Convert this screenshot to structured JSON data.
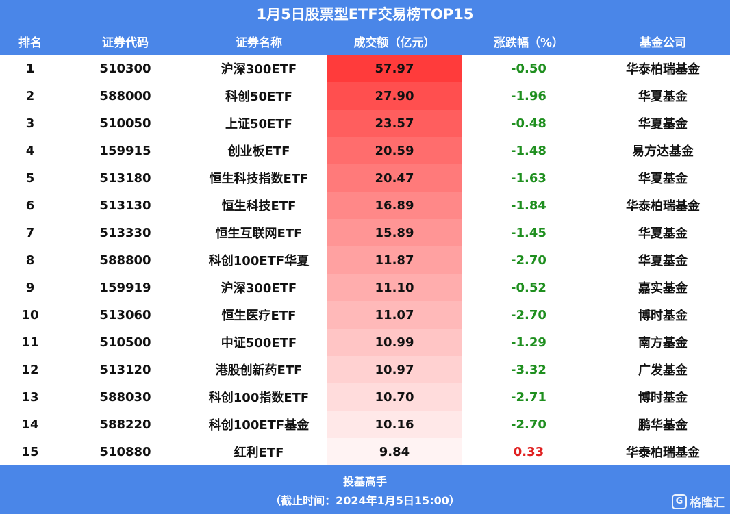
{
  "chart_data": {
    "type": "table",
    "title": "1月5日股票型ETF交易榜TOP15",
    "columns": [
      "排名",
      "证券代码",
      "证券名称",
      "成交额（亿元）",
      "涨跌幅（%）",
      "基金公司"
    ],
    "rows": [
      {
        "rank": "1",
        "code": "510300",
        "name": "沪深300ETF",
        "turnover": "57.97",
        "change": "-0.50",
        "company": "华泰柏瑞基金"
      },
      {
        "rank": "2",
        "code": "588000",
        "name": "科创50ETF",
        "turnover": "27.90",
        "change": "-1.96",
        "company": "华夏基金"
      },
      {
        "rank": "3",
        "code": "510050",
        "name": "上证50ETF",
        "turnover": "23.57",
        "change": "-0.48",
        "company": "华夏基金"
      },
      {
        "rank": "4",
        "code": "159915",
        "name": "创业板ETF",
        "turnover": "20.59",
        "change": "-1.48",
        "company": "易方达基金"
      },
      {
        "rank": "5",
        "code": "513180",
        "name": "恒生科技指数ETF",
        "turnover": "20.47",
        "change": "-1.63",
        "company": "华夏基金"
      },
      {
        "rank": "6",
        "code": "513130",
        "name": "恒生科技ETF",
        "turnover": "16.89",
        "change": "-1.84",
        "company": "华泰柏瑞基金"
      },
      {
        "rank": "7",
        "code": "513330",
        "name": "恒生互联网ETF",
        "turnover": "15.89",
        "change": "-1.45",
        "company": "华夏基金"
      },
      {
        "rank": "8",
        "code": "588800",
        "name": "科创100ETF华夏",
        "turnover": "11.87",
        "change": "-2.70",
        "company": "华夏基金"
      },
      {
        "rank": "9",
        "code": "159919",
        "name": "沪深300ETF",
        "turnover": "11.10",
        "change": "-0.52",
        "company": "嘉实基金"
      },
      {
        "rank": "10",
        "code": "513060",
        "name": "恒生医疗ETF",
        "turnover": "11.07",
        "change": "-2.70",
        "company": "博时基金"
      },
      {
        "rank": "11",
        "code": "510500",
        "name": "中证500ETF",
        "turnover": "10.99",
        "change": "-1.29",
        "company": "南方基金"
      },
      {
        "rank": "12",
        "code": "513120",
        "name": "港股创新药ETF",
        "turnover": "10.97",
        "change": "-3.32",
        "company": "广发基金"
      },
      {
        "rank": "13",
        "code": "588030",
        "name": "科创100指数ETF",
        "turnover": "10.70",
        "change": "-2.71",
        "company": "博时基金"
      },
      {
        "rank": "14",
        "code": "588220",
        "name": "科创100ETF基金",
        "turnover": "10.16",
        "change": "-2.70",
        "company": "鹏华基金"
      },
      {
        "rank": "15",
        "code": "510880",
        "name": "红利ETF",
        "turnover": "9.84",
        "change": "0.33",
        "company": "华泰柏瑞基金"
      }
    ]
  },
  "footer": {
    "source": "投基高手",
    "timestamp": "（截止时间：2024年1月5日15:00）"
  },
  "watermark": {
    "icon_glyph": "G",
    "text": "格隆汇"
  },
  "colors": {
    "header_bg": "#4a86e8",
    "heat_max": "#ff3b3b",
    "heat_min": "#fff3f3",
    "negative": "#1f8f1f",
    "positive": "#e02020"
  }
}
